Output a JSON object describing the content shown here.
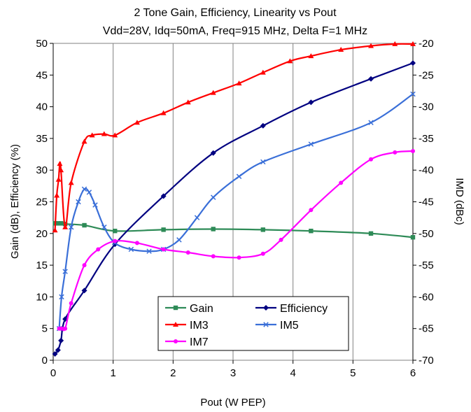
{
  "chart_data": {
    "type": "line",
    "title": "2 Tone Gain, Efficiency, Linearity vs Pout",
    "subtitle": "Vdd=28V, Idq=50mA, Freq=915 MHz, Delta F=1 MHz",
    "xlabel": "Pout (W PEP)",
    "ylabel": "Gain (dB), Efficiency (%)",
    "y2label": "IMD (dBc)",
    "xlim": [
      0,
      6
    ],
    "ylim": [
      0,
      50
    ],
    "y2lim": [
      -70,
      -20
    ],
    "xticks": [
      "0",
      "1",
      "2",
      "3",
      "4",
      "5",
      "6"
    ],
    "yticks": [
      "0",
      "5",
      "10",
      "15",
      "20",
      "25",
      "30",
      "35",
      "40",
      "45",
      "50"
    ],
    "y2ticks": [
      "-70",
      "-65",
      "-60",
      "-55",
      "-50",
      "-45",
      "-40",
      "-35",
      "-30",
      "-25",
      "-20"
    ],
    "grid": "vertical",
    "legend_position": "bottom-center",
    "series": [
      {
        "name": "Gain",
        "axis": "left",
        "color": "#2e8b57",
        "marker": "square",
        "x": [
          0.03,
          0.08,
          0.13,
          0.2,
          0.52,
          1.03,
          1.84,
          2.67,
          3.5,
          4.3,
          5.3,
          6.0
        ],
        "y": [
          21.6,
          21.6,
          21.6,
          21.5,
          21.3,
          20.4,
          20.6,
          20.7,
          20.6,
          20.4,
          20.0,
          19.4
        ]
      },
      {
        "name": "Efficiency",
        "axis": "left",
        "color": "#000080",
        "marker": "diamond",
        "x": [
          0.03,
          0.08,
          0.13,
          0.2,
          0.52,
          1.03,
          1.84,
          2.67,
          3.5,
          4.3,
          5.3,
          6.0
        ],
        "y": [
          1.0,
          1.6,
          3.1,
          6.5,
          11.0,
          18.3,
          25.9,
          32.7,
          37.0,
          40.7,
          44.4,
          46.9
        ]
      },
      {
        "name": "IM3",
        "axis": "right",
        "color": "#ff0000",
        "marker": "triangle",
        "x": [
          0.03,
          0.06,
          0.09,
          0.11,
          0.13,
          0.2,
          0.3,
          0.52,
          0.65,
          0.85,
          1.03,
          1.4,
          1.84,
          2.25,
          2.67,
          3.1,
          3.5,
          3.95,
          4.3,
          4.8,
          5.3,
          5.7,
          6.0
        ],
        "y": [
          -49.5,
          -44.0,
          -41.5,
          -39.0,
          -40.0,
          -49.0,
          -42.0,
          -35.5,
          -34.5,
          -34.3,
          -34.5,
          -32.5,
          -31.0,
          -29.3,
          -27.8,
          -26.3,
          -24.6,
          -22.8,
          -22.0,
          -21.0,
          -20.4,
          -20.1,
          -20.1
        ]
      },
      {
        "name": "IM5",
        "axis": "right",
        "color": "#3a6fd8",
        "marker": "x",
        "x": [
          0.1,
          0.14,
          0.2,
          0.3,
          0.42,
          0.52,
          0.6,
          0.7,
          0.85,
          1.03,
          1.3,
          1.6,
          1.84,
          2.1,
          2.4,
          2.67,
          3.1,
          3.5,
          4.3,
          5.3,
          6.0
        ],
        "y": [
          -65.0,
          -60.0,
          -56.0,
          -49.0,
          -45.0,
          -43.0,
          -43.5,
          -45.5,
          -49.0,
          -51.5,
          -52.5,
          -52.8,
          -52.5,
          -51.0,
          -47.5,
          -44.3,
          -41.0,
          -38.7,
          -35.9,
          -32.5,
          -28.0
        ]
      },
      {
        "name": "IM7",
        "axis": "right",
        "color": "#ff00ff",
        "marker": "circle",
        "x": [
          0.1,
          0.14,
          0.2,
          0.3,
          0.52,
          0.75,
          1.03,
          1.4,
          1.84,
          2.25,
          2.67,
          3.1,
          3.5,
          3.8,
          4.3,
          4.8,
          5.3,
          5.7,
          6.0
        ],
        "y": [
          -65.0,
          -65.0,
          -65.0,
          -61.0,
          -55.0,
          -52.5,
          -51.2,
          -51.5,
          -52.5,
          -53.0,
          -53.6,
          -53.8,
          -53.2,
          -51.0,
          -46.3,
          -42.0,
          -38.3,
          -37.2,
          -37.0
        ]
      }
    ]
  }
}
